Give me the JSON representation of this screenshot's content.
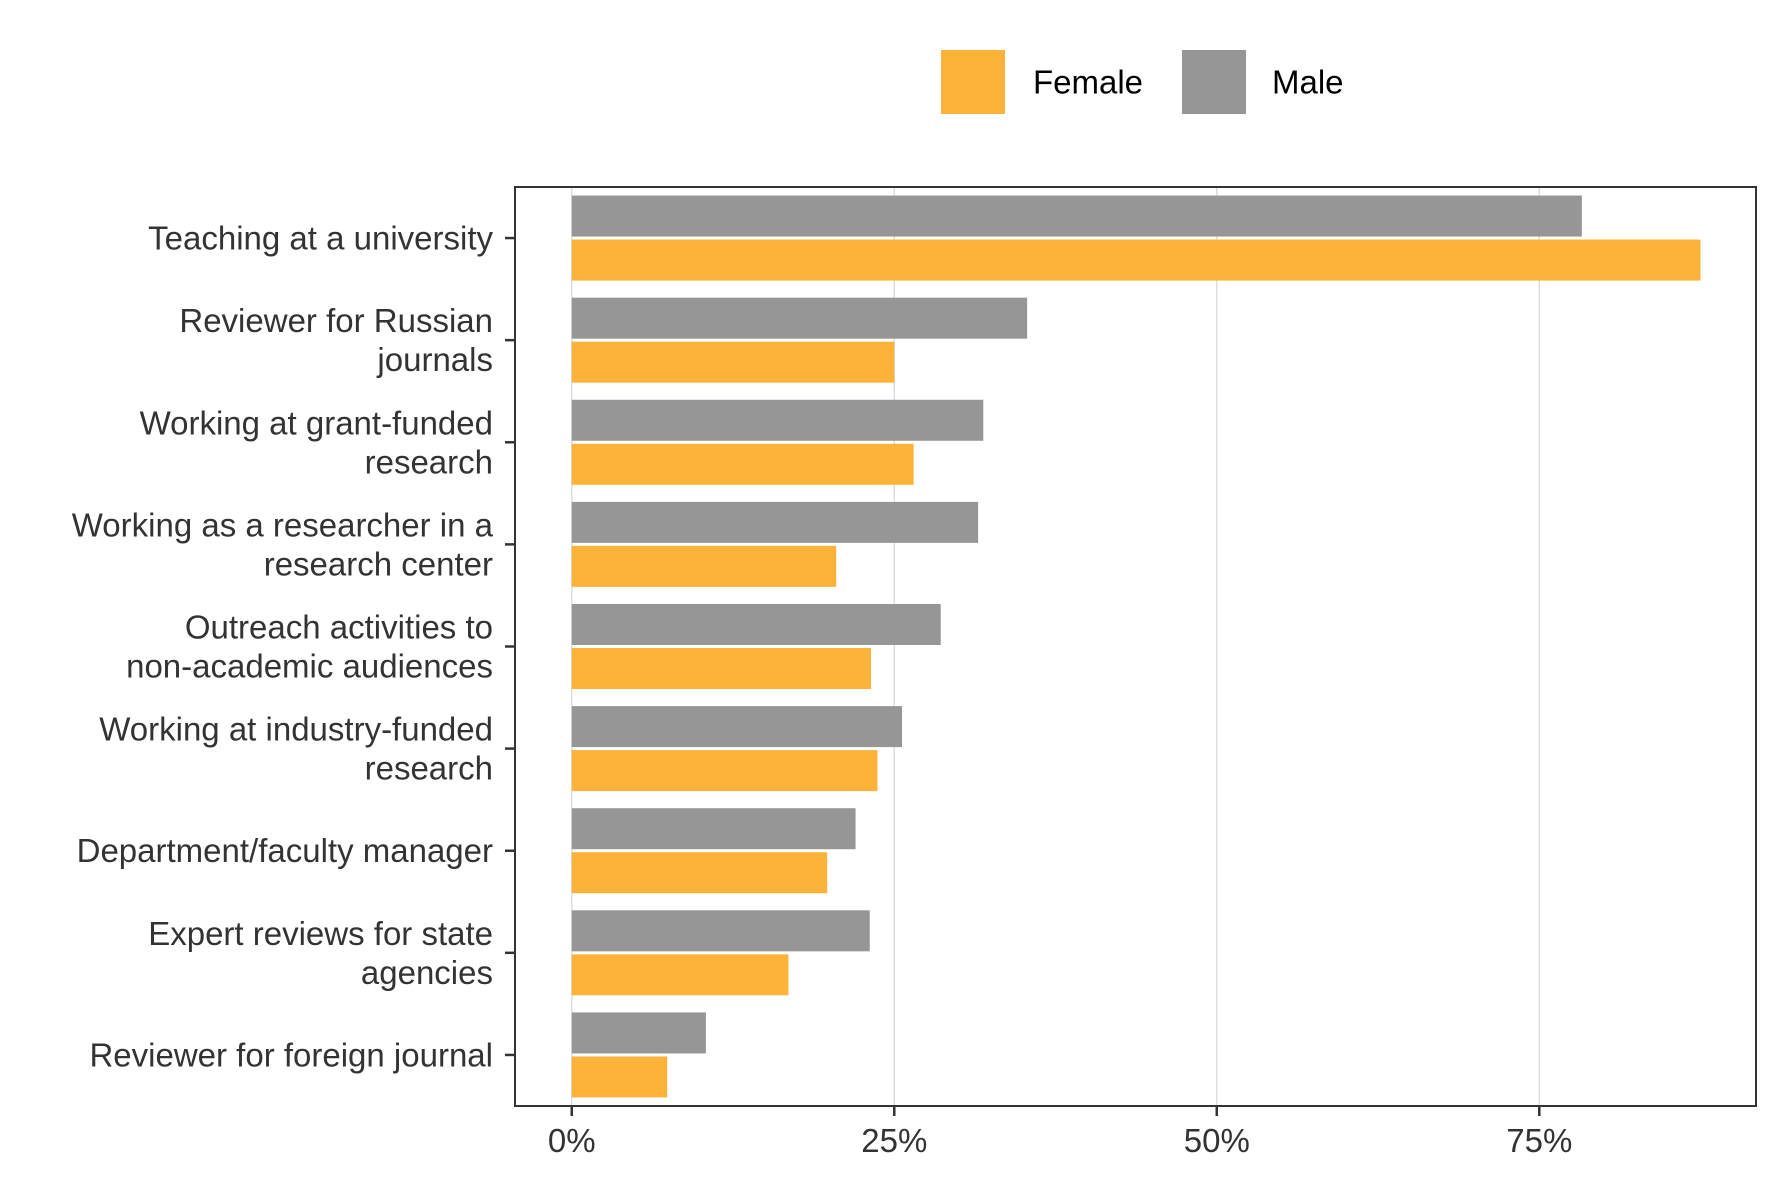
{
  "chart_data": {
    "type": "bar",
    "orientation": "horizontal",
    "title": "",
    "xlabel": "",
    "ylabel": "",
    "categories": [
      [
        "Teaching at a university"
      ],
      [
        "Reviewer for Russian",
        "journals"
      ],
      [
        "Working at grant-funded",
        "research"
      ],
      [
        "Working as a researcher in a",
        "research center"
      ],
      [
        "Outreach activities to",
        "non-academic audiences"
      ],
      [
        "Working at industry-funded",
        "research"
      ],
      [
        "Department/faculty manager"
      ],
      [
        "Expert reviews for state",
        "agencies"
      ],
      [
        "Reviewer for foreign journal"
      ]
    ],
    "series": [
      {
        "name": "Female",
        "color": "#FDB23A",
        "values": [
          87.5,
          25.0,
          26.5,
          20.5,
          23.2,
          23.7,
          19.8,
          16.8,
          7.4
        ]
      },
      {
        "name": "Male",
        "color": "#969696",
        "values": [
          78.3,
          35.3,
          31.9,
          31.5,
          28.6,
          25.6,
          22.0,
          23.1,
          10.4
        ]
      }
    ],
    "xlim": [
      -4.4,
      91.8
    ],
    "x_ticks": [
      0,
      25,
      50,
      75
    ],
    "x_tick_labels": [
      "0%",
      "25%",
      "50%",
      "75%"
    ],
    "grid": true,
    "legend_position": "top"
  }
}
